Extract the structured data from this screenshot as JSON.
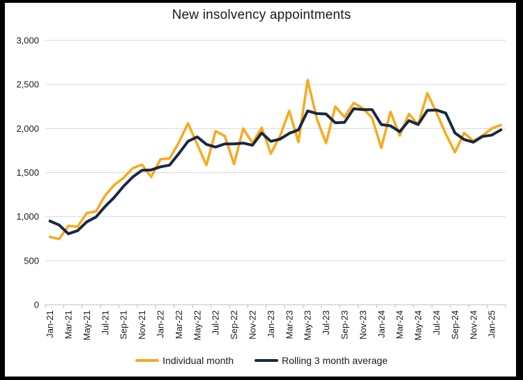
{
  "title": "New insolvency appointments",
  "colors": {
    "individual": "#FAA81B",
    "rolling": "#182842",
    "gridline": "#D9D9D9",
    "axis_line": "#BFBFBF",
    "axis_text": "#1A1A1A",
    "frame_bg": "#000000",
    "chart_bg": "#FFFFFF"
  },
  "legend": [
    {
      "label": "Individual month",
      "color_key": "individual"
    },
    {
      "label": "Rolling 3 month average",
      "color_key": "rolling"
    }
  ],
  "chart_data": {
    "type": "line",
    "title": "New insolvency appointments",
    "x": [
      "Jan-21",
      "Feb-21",
      "Mar-21",
      "Apr-21",
      "May-21",
      "Jun-21",
      "Jul-21",
      "Aug-21",
      "Sep-21",
      "Oct-21",
      "Nov-21",
      "Dec-21",
      "Jan-22",
      "Feb-22",
      "Mar-22",
      "Apr-22",
      "May-22",
      "Jun-22",
      "Jul-22",
      "Aug-22",
      "Sep-22",
      "Oct-22",
      "Nov-22",
      "Dec-22",
      "Jan-23",
      "Feb-23",
      "Mar-23",
      "Apr-23",
      "May-23",
      "Jun-23",
      "Jul-23",
      "Aug-23",
      "Sep-23",
      "Oct-23",
      "Nov-23",
      "Dec-23",
      "Jan-24",
      "Feb-24",
      "Mar-24",
      "Apr-24",
      "May-24",
      "Jun-24",
      "Jul-24",
      "Aug-24",
      "Sep-24",
      "Oct-24",
      "Nov-24",
      "Dec-24",
      "Jan-25",
      "Feb-25"
    ],
    "x_tick_label_every": 2,
    "series": [
      {
        "name": "Individual month",
        "color_key": "individual",
        "stroke_width": 3.5,
        "values": [
          770,
          745,
          895,
          885,
          1040,
          1060,
          1240,
          1360,
          1440,
          1550,
          1590,
          1450,
          1650,
          1660,
          1840,
          2060,
          1820,
          1585,
          1970,
          1915,
          1595,
          2000,
          1835,
          2010,
          1715,
          1915,
          2200,
          1845,
          2550,
          2110,
          1835,
          2250,
          2130,
          2290,
          2230,
          2120,
          1780,
          2190,
          1920,
          2165,
          2045,
          2400,
          2180,
          1940,
          1730,
          1950,
          1860,
          1920,
          2000,
          2040
        ]
      },
      {
        "name": "Rolling 3 month average",
        "color_key": "rolling",
        "stroke_width": 4,
        "values": [
          950,
          905,
          805,
          840,
          940,
          995,
          1115,
          1220,
          1345,
          1450,
          1525,
          1530,
          1565,
          1585,
          1715,
          1855,
          1905,
          1820,
          1790,
          1825,
          1825,
          1835,
          1810,
          1950,
          1855,
          1880,
          1945,
          1985,
          2200,
          2170,
          2165,
          2065,
          2070,
          2225,
          2215,
          2215,
          2045,
          2030,
          1965,
          2090,
          2045,
          2205,
          2210,
          2175,
          1950,
          1875,
          1845,
          1910,
          1925,
          1985
        ]
      }
    ],
    "ylim": [
      0,
      3000
    ],
    "ytick_step": 500,
    "grid": "horizontal",
    "legend_position": "bottom"
  }
}
